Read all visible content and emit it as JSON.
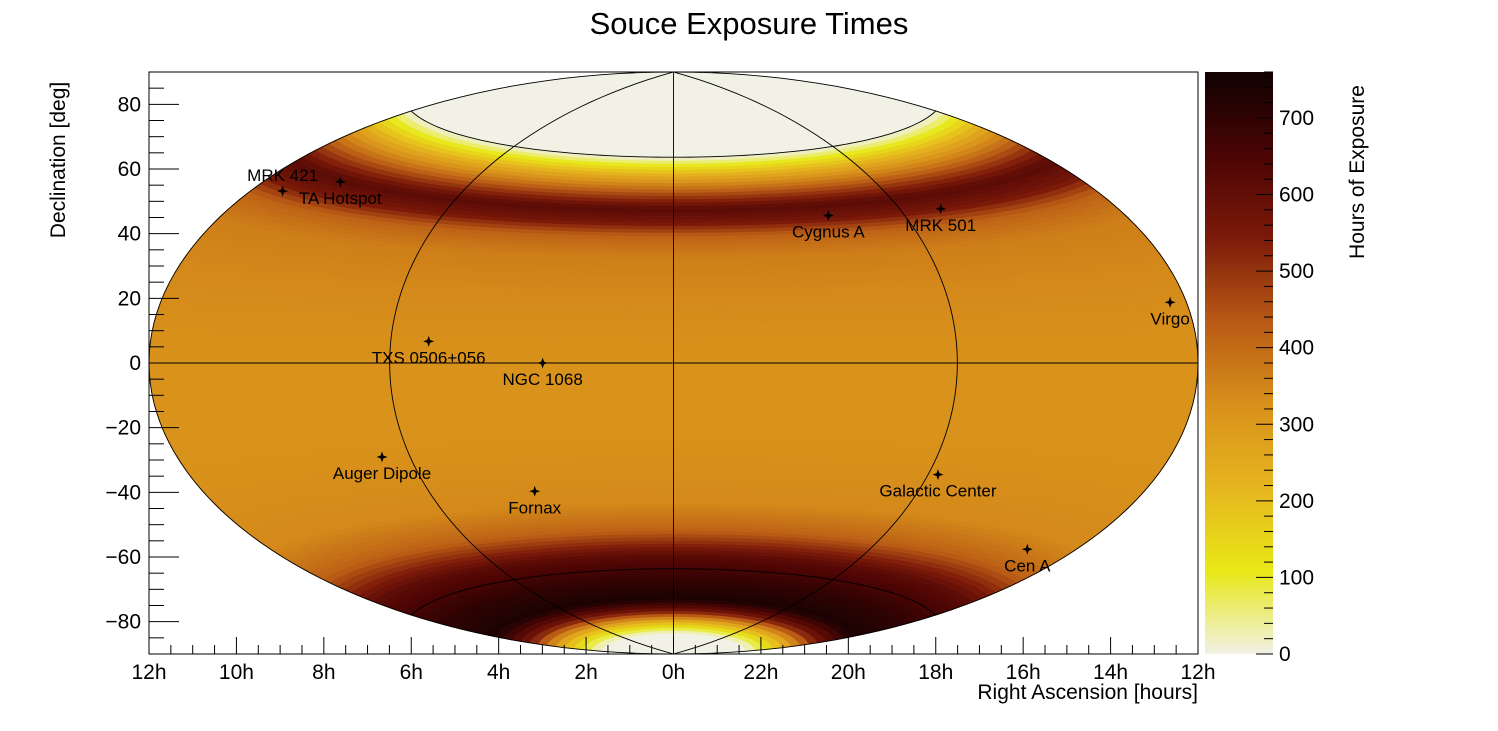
{
  "chart_data": {
    "type": "heatmap",
    "projection": "hammer-aitoff",
    "title": "Souce Exposure Times",
    "xlabel": "Right Ascension [hours]",
    "ylabel": "Declination [deg]",
    "colorbar_label": "Hours of Exposure",
    "xlim_hours": [
      12,
      -12
    ],
    "ylim_deg": [
      -90,
      90
    ],
    "zlim": [
      0,
      760
    ],
    "x_ticks": [
      "12h",
      "10h",
      "8h",
      "6h",
      "4h",
      "2h",
      "0h",
      "22h",
      "20h",
      "18h",
      "16h",
      "14h",
      "12h"
    ],
    "y_ticks": [
      -80,
      -60,
      -40,
      -20,
      0,
      20,
      40,
      60,
      80
    ],
    "z_ticks": [
      0,
      100,
      200,
      300,
      400,
      500,
      600,
      700
    ],
    "grid": "graticule",
    "colormap": [
      "#f1f1e6",
      "#e8e817",
      "#e6b51f",
      "#d8901b",
      "#b85a15",
      "#7c1a0a",
      "#4a0404",
      "#100202"
    ],
    "exposure_profile": {
      "declination_deg": [
        -90,
        -82,
        -78,
        -74,
        -70,
        -64,
        -56,
        -48,
        -40,
        -30,
        -20,
        -10,
        0,
        10,
        20,
        30,
        36,
        40,
        44,
        48,
        54,
        60,
        64,
        90
      ],
      "hours": [
        0,
        0,
        220,
        560,
        740,
        700,
        620,
        420,
        340,
        330,
        320,
        320,
        320,
        330,
        340,
        360,
        420,
        560,
        620,
        480,
        250,
        0,
        0,
        0
      ]
    },
    "sources": [
      {
        "name": "MRK 421",
        "ra_h": 11.07,
        "dec": 38.2
      },
      {
        "name": "TA Hotspot",
        "ra_h": 9.78,
        "dec": 43.2
      },
      {
        "name": "TXS 0506+056",
        "ra_h": 5.16,
        "dec": 5.7
      },
      {
        "name": "NGC 1068",
        "ra_h": 2.71,
        "dec": 0.0
      },
      {
        "name": "Auger Dipole",
        "ra_h": 6.67,
        "dec": -24.0
      },
      {
        "name": "Fornax",
        "ra_h": 3.38,
        "dec": -35.5
      },
      {
        "name": "Cygnus A",
        "ra_h": 19.99,
        "dec": 40.7
      },
      {
        "name": "MRK 501",
        "ra_h": 16.9,
        "dec": 39.8
      },
      {
        "name": "Virgo",
        "ra_h": 12.47,
        "dec": 12.4
      },
      {
        "name": "Galactic Center",
        "ra_h": 17.76,
        "dec": -29.0
      },
      {
        "name": "Cen A",
        "ra_h": 13.42,
        "dec": -43.0
      }
    ]
  }
}
